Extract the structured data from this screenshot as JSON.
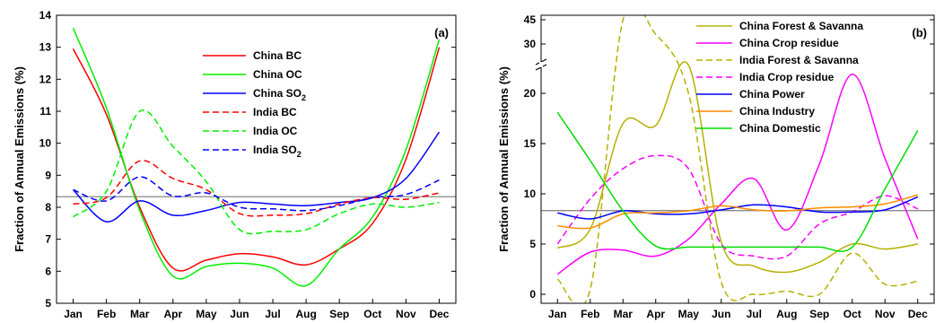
{
  "chart_data": [
    {
      "type": "line",
      "panel_label": "(a)",
      "ylabel": "Fraction of Annual Emissions (%)",
      "xlabel": "",
      "categories": [
        "Jan",
        "Feb",
        "Mar",
        "Apr",
        "May",
        "Jun",
        "Jul",
        "Aug",
        "Sep",
        "Oct",
        "Nov",
        "Dec"
      ],
      "ylim": [
        5,
        14
      ],
      "yticks": [
        "5",
        "6",
        "7",
        "8",
        "9",
        "10",
        "11",
        "12",
        "13",
        "14"
      ],
      "reference_line": 8.33,
      "legend_position": "top-right",
      "series": [
        {
          "name": "China BC",
          "label_main": "China BC",
          "label_sub": "",
          "color": "#ff0000",
          "dashed": false,
          "values": [
            12.95,
            10.9,
            8.0,
            6.1,
            6.35,
            6.55,
            6.45,
            6.2,
            6.7,
            7.5,
            9.5,
            13.0
          ]
        },
        {
          "name": "China OC",
          "label_main": "China OC",
          "label_sub": "",
          "color": "#00ee00",
          "dashed": false,
          "values": [
            13.6,
            11.1,
            7.9,
            5.85,
            6.15,
            6.25,
            6.1,
            5.55,
            6.7,
            7.7,
            9.8,
            13.25
          ]
        },
        {
          "name": "China SO2",
          "label_main": "China SO",
          "label_sub": "2",
          "color": "#0000ff",
          "dashed": false,
          "values": [
            8.55,
            7.55,
            8.2,
            7.75,
            7.9,
            8.15,
            8.1,
            8.05,
            8.15,
            8.3,
            8.9,
            10.35
          ]
        },
        {
          "name": "India BC",
          "label_main": "India BC",
          "label_sub": "",
          "color": "#ff0000",
          "dashed": true,
          "values": [
            8.1,
            8.3,
            9.45,
            8.9,
            8.55,
            7.8,
            7.75,
            7.8,
            8.1,
            8.3,
            8.25,
            8.45
          ]
        },
        {
          "name": "India OC",
          "label_main": "India OC",
          "label_sub": "",
          "color": "#00ee00",
          "dashed": true,
          "values": [
            7.7,
            8.5,
            11.0,
            9.9,
            8.8,
            7.3,
            7.25,
            7.3,
            7.8,
            8.1,
            8.0,
            8.15
          ]
        },
        {
          "name": "India SO2",
          "label_main": "India SO",
          "label_sub": "2",
          "color": "#0000ff",
          "dashed": true,
          "values": [
            8.55,
            8.2,
            8.95,
            8.35,
            8.45,
            8.0,
            7.95,
            7.9,
            8.05,
            8.3,
            8.4,
            8.85
          ]
        }
      ]
    },
    {
      "type": "line",
      "panel_label": "(b)",
      "ylabel": "Fraction of Annual Emissions (%)",
      "xlabel": "",
      "categories": [
        "Jan",
        "Feb",
        "Mar",
        "Apr",
        "May",
        "Jun",
        "Jul",
        "Aug",
        "Sep",
        "Oct",
        "Nov",
        "Dec"
      ],
      "ylim": [
        -1,
        46
      ],
      "axis_break": {
        "between": [
          23,
          28
        ]
      },
      "yticks": [
        "0",
        "5",
        "10",
        "15",
        "20",
        "30",
        "45"
      ],
      "reference_line": 8.33,
      "legend_position": "top-left",
      "series": [
        {
          "name": "China Forest & Savanna",
          "color": "#b5b000",
          "dashed": false,
          "values": [
            4.6,
            6.5,
            17.0,
            16.8,
            22.8,
            5.2,
            2.8,
            2.2,
            3.2,
            5.0,
            4.5,
            5.0
          ]
        },
        {
          "name": "China Crop residue",
          "color": "#ff00ff",
          "dashed": false,
          "values": [
            2.0,
            4.2,
            4.4,
            3.8,
            5.5,
            9.0,
            11.5,
            6.4,
            13.0,
            21.9,
            13.5,
            5.5
          ]
        },
        {
          "name": "India Forest & Savanna",
          "color": "#b5b000",
          "dashed": true,
          "values": [
            1.5,
            0.5,
            45.0,
            36.0,
            20.0,
            1.2,
            0.0,
            0.3,
            0.0,
            4.1,
            1.0,
            1.3
          ]
        },
        {
          "name": "India Crop residue",
          "color": "#ff00ff",
          "dashed": true,
          "values": [
            5.0,
            9.5,
            12.5,
            13.8,
            12.5,
            5.0,
            3.8,
            3.8,
            7.0,
            8.2,
            9.8,
            8.5
          ]
        },
        {
          "name": "China Power",
          "color": "#0000ff",
          "dashed": false,
          "values": [
            8.1,
            7.5,
            8.3,
            8.0,
            8.0,
            8.4,
            8.9,
            8.7,
            8.2,
            8.2,
            8.4,
            9.7
          ]
        },
        {
          "name": "China Industry",
          "color": "#ff8c00",
          "dashed": false,
          "values": [
            6.8,
            6.6,
            8.0,
            8.1,
            8.3,
            8.8,
            8.4,
            8.3,
            8.6,
            8.7,
            9.0,
            9.9
          ]
        },
        {
          "name": "China Domestic",
          "color": "#00dd00",
          "dashed": false,
          "values": [
            18.1,
            13.3,
            8.3,
            4.8,
            4.7,
            4.7,
            4.7,
            4.7,
            4.7,
            4.7,
            10.5,
            16.3
          ]
        }
      ]
    }
  ]
}
